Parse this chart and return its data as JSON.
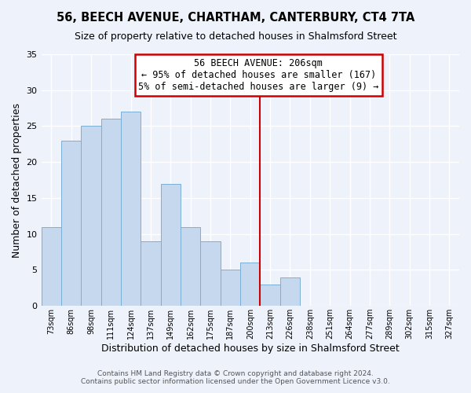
{
  "title": "56, BEECH AVENUE, CHARTHAM, CANTERBURY, CT4 7TA",
  "subtitle": "Size of property relative to detached houses in Shalmsford Street",
  "xlabel": "Distribution of detached houses by size in Shalmsford Street",
  "ylabel": "Number of detached properties",
  "bin_labels": [
    "73sqm",
    "86sqm",
    "98sqm",
    "111sqm",
    "124sqm",
    "137sqm",
    "149sqm",
    "162sqm",
    "175sqm",
    "187sqm",
    "200sqm",
    "213sqm",
    "226sqm",
    "238sqm",
    "251sqm",
    "264sqm",
    "277sqm",
    "289sqm",
    "302sqm",
    "315sqm",
    "327sqm"
  ],
  "bar_heights": [
    11,
    23,
    25,
    26,
    27,
    9,
    17,
    11,
    9,
    5,
    6,
    3,
    4,
    0,
    0,
    0,
    0,
    0,
    0,
    0,
    0
  ],
  "bar_color": "#c5d8ed",
  "bar_edgecolor": "#7bafd4",
  "ylim": [
    0,
    35
  ],
  "yticks": [
    0,
    5,
    10,
    15,
    20,
    25,
    30,
    35
  ],
  "vline_x": 10.5,
  "vline_color": "#cc0000",
  "annotation_title": "56 BEECH AVENUE: 206sqm",
  "annotation_line1": "← 95% of detached houses are smaller (167)",
  "annotation_line2": "5% of semi-detached houses are larger (9) →",
  "footer1": "Contains HM Land Registry data © Crown copyright and database right 2024.",
  "footer2": "Contains public sector information licensed under the Open Government Licence v3.0.",
  "background_color": "#eef2fb",
  "grid_color": "#ffffff"
}
